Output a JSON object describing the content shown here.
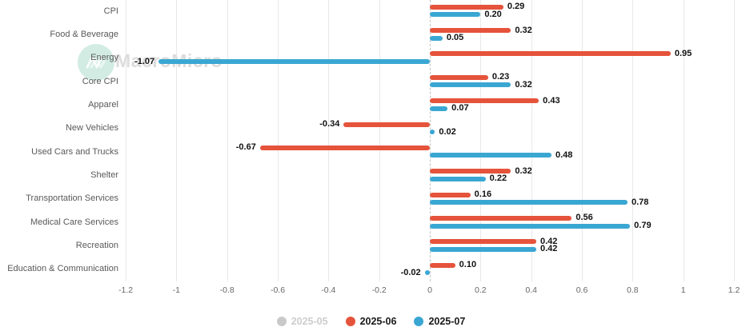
{
  "watermark": {
    "text": "MacroMicro"
  },
  "chart_data": {
    "type": "bar",
    "orientation": "horizontal",
    "title": "",
    "xlabel": "",
    "ylabel": "",
    "xlim": [
      -1.2,
      1.2
    ],
    "grid": true,
    "zero_line_style": "dashed",
    "x_ticks": [
      -1.2,
      -1,
      -0.8,
      -0.6,
      -0.4,
      -0.2,
      0,
      0.2,
      0.4,
      0.6,
      0.8,
      1,
      1.2
    ],
    "x_tick_labels": [
      "-1.2",
      "-1",
      "-0.8",
      "-0.6",
      "-0.4",
      "-0.2",
      "0",
      "0.2",
      "0.4",
      "0.6",
      "0.8",
      "1",
      "1.2"
    ],
    "categories": [
      "CPI",
      "Food & Beverage",
      "Energy",
      "Core CPI",
      "Apparel",
      "New Vehicles",
      "Used Cars and Trucks",
      "Shelter",
      "Transportation Services",
      "Medical Care Services",
      "Recreation",
      "Education & Communication"
    ],
    "series": [
      {
        "name": "2025-06",
        "color": "#e5533b",
        "values": [
          0.29,
          0.32,
          0.95,
          0.23,
          0.43,
          -0.34,
          -0.67,
          0.32,
          0.16,
          0.56,
          0.42,
          0.1
        ]
      },
      {
        "name": "2025-07",
        "color": "#3aa7d3",
        "values": [
          0.2,
          0.05,
          -1.07,
          0.32,
          0.07,
          0.02,
          0.48,
          0.22,
          0.78,
          0.79,
          0.42,
          -0.02
        ]
      }
    ],
    "legend": {
      "position": "bottom-center",
      "items": [
        {
          "label": "2025-05",
          "color": "#c9c9c9",
          "active": false
        },
        {
          "label": "2025-06",
          "color": "#e5533b",
          "active": true
        },
        {
          "label": "2025-07",
          "color": "#3aa7d3",
          "active": true
        }
      ]
    }
  }
}
